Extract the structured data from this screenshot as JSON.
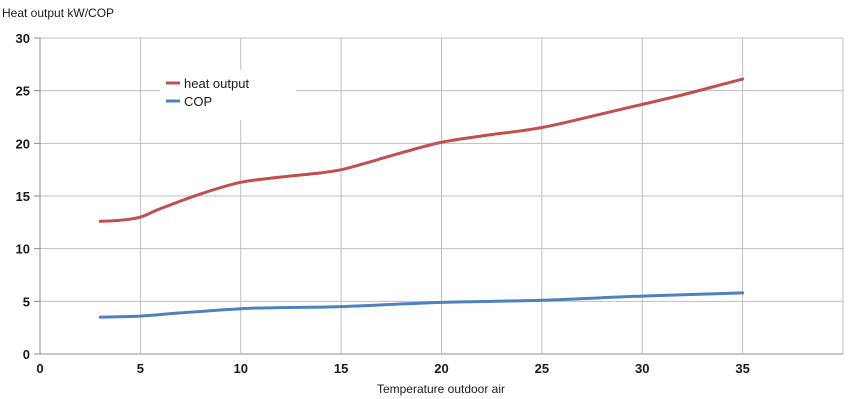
{
  "chart_data": {
    "type": "line",
    "ylabel": "Heat output kW/COP",
    "xlabel": "Temperature outdoor air",
    "xlim": [
      0,
      40
    ],
    "ylim": [
      0,
      30
    ],
    "xticks": [
      0,
      5,
      10,
      15,
      20,
      25,
      30,
      35
    ],
    "yticks": [
      0,
      5,
      10,
      15,
      20,
      25,
      30
    ],
    "grid": true,
    "legend_position": "top-left",
    "series": [
      {
        "name": "heat output",
        "color": "#c0504d",
        "x": [
          3,
          4,
          5,
          6,
          8,
          10,
          12,
          14,
          15,
          16,
          18,
          20,
          22,
          24,
          25,
          26,
          28,
          30,
          32,
          34,
          35
        ],
        "y": [
          12.6,
          12.7,
          13.0,
          13.8,
          15.2,
          16.3,
          16.8,
          17.2,
          17.5,
          18.0,
          19.1,
          20.1,
          20.7,
          21.2,
          21.5,
          21.9,
          22.8,
          23.7,
          24.6,
          25.6,
          26.1
        ]
      },
      {
        "name": "COP",
        "color": "#4f81bd",
        "x": [
          3,
          5,
          7,
          10,
          12,
          15,
          20,
          25,
          30,
          35
        ],
        "y": [
          3.5,
          3.6,
          3.9,
          4.3,
          4.4,
          4.5,
          4.9,
          5.1,
          5.5,
          5.8
        ]
      }
    ]
  }
}
